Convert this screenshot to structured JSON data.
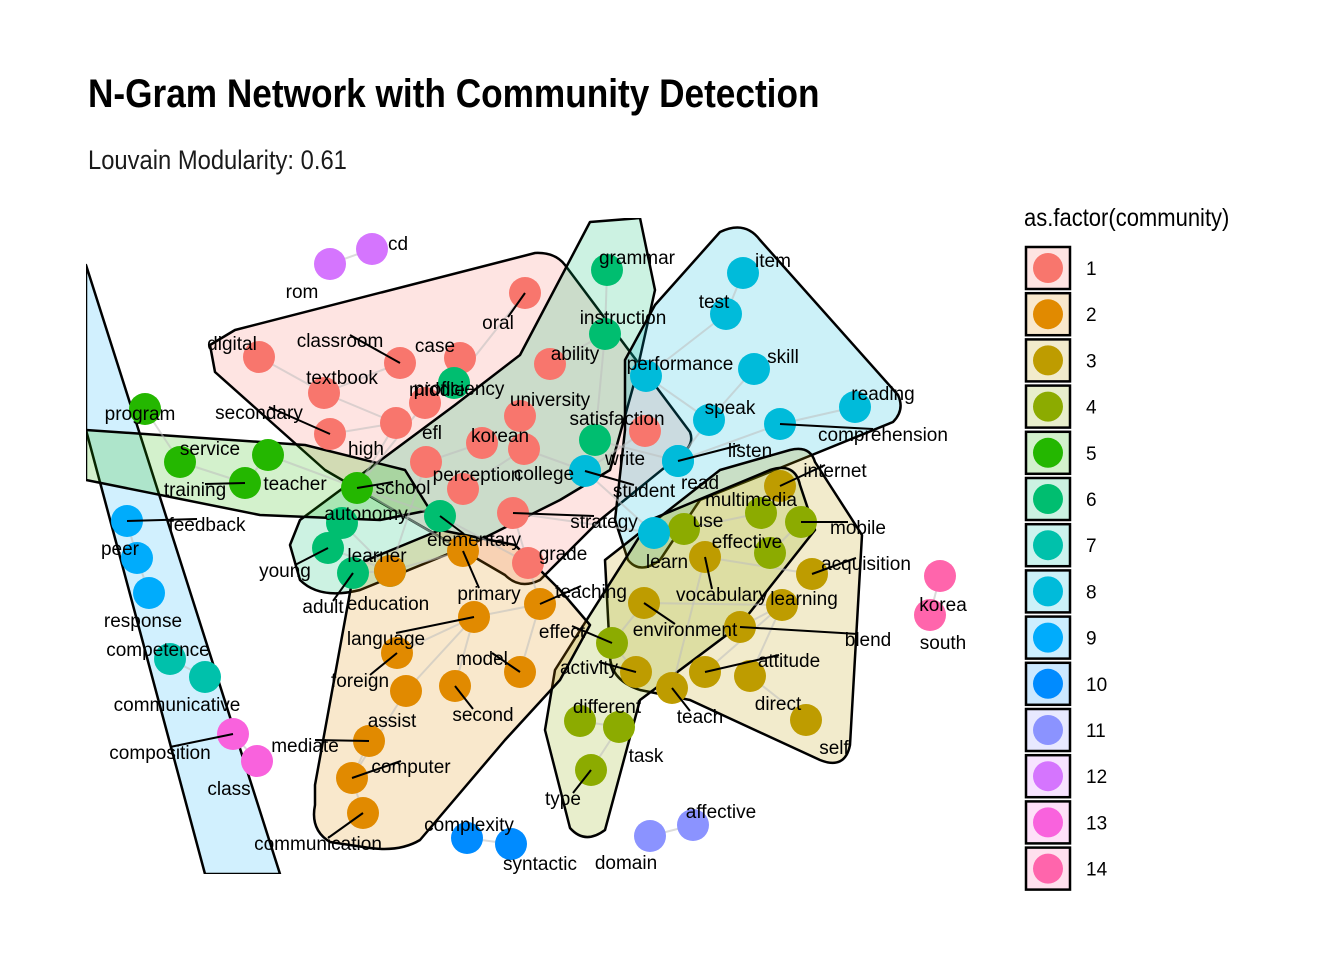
{
  "title": "N-Gram Network with Community Detection",
  "subtitle": "Louvain Modularity: 0.61",
  "legend": {
    "title": "as.factor(community)",
    "items": [
      {
        "label": "1",
        "color": "#F8766D"
      },
      {
        "label": "2",
        "color": "#E18A00"
      },
      {
        "label": "3",
        "color": "#BE9C00"
      },
      {
        "label": "4",
        "color": "#8CAB00"
      },
      {
        "label": "5",
        "color": "#24B700"
      },
      {
        "label": "6",
        "color": "#00BE70"
      },
      {
        "label": "7",
        "color": "#00C1AB"
      },
      {
        "label": "8",
        "color": "#00BBDA"
      },
      {
        "label": "9",
        "color": "#00ACFC"
      },
      {
        "label": "10",
        "color": "#008BFF"
      },
      {
        "label": "11",
        "color": "#8B93FF"
      },
      {
        "label": "12",
        "color": "#D575FE"
      },
      {
        "label": "13",
        "color": "#F962DD"
      },
      {
        "label": "14",
        "color": "#FF65AC"
      }
    ]
  },
  "nodes": [
    {
      "word": "rom",
      "community": 12
    },
    {
      "word": "cd",
      "community": 12
    },
    {
      "word": "grammar",
      "community": 6
    },
    {
      "word": "item",
      "community": 8
    },
    {
      "word": "test",
      "community": 8
    },
    {
      "word": "oral",
      "community": 1
    },
    {
      "word": "instruction",
      "community": 6
    },
    {
      "word": "digital",
      "community": 1
    },
    {
      "word": "classroom",
      "community": 1
    },
    {
      "word": "case",
      "community": 1
    },
    {
      "word": "ability",
      "community": 1
    },
    {
      "word": "performance",
      "community": 8
    },
    {
      "word": "skill",
      "community": 8
    },
    {
      "word": "textbook",
      "community": 1
    },
    {
      "word": "middle",
      "community": 1
    },
    {
      "word": "proficiency",
      "community": 6
    },
    {
      "word": "reading",
      "community": 8
    },
    {
      "word": "university",
      "community": 1
    },
    {
      "word": "speak",
      "community": 8
    },
    {
      "word": "program",
      "community": 5
    },
    {
      "word": "secondary",
      "community": 1
    },
    {
      "word": "satisfaction",
      "community": 1
    },
    {
      "word": "comprehension",
      "community": 8
    },
    {
      "word": "service",
      "community": 5
    },
    {
      "word": "high",
      "community": 1
    },
    {
      "word": "efl",
      "community": 1
    },
    {
      "word": "korean",
      "community": 1
    },
    {
      "word": "listen",
      "community": 8
    },
    {
      "word": "write",
      "community": 6
    },
    {
      "word": "internet",
      "community": 3
    },
    {
      "word": "perception",
      "community": 1
    },
    {
      "word": "college",
      "community": 1
    },
    {
      "word": "teacher",
      "community": 5
    },
    {
      "word": "training",
      "community": 5
    },
    {
      "word": "school",
      "community": 5
    },
    {
      "word": "student",
      "community": 8
    },
    {
      "word": "read",
      "community": 8
    },
    {
      "word": "multimedia",
      "community": 4
    },
    {
      "word": "autonomy",
      "community": 6
    },
    {
      "word": "mobile",
      "community": 4
    },
    {
      "word": "feedback",
      "community": 9
    },
    {
      "word": "strategy",
      "community": 1
    },
    {
      "word": "use",
      "community": 4
    },
    {
      "word": "effective",
      "community": 4
    },
    {
      "word": "elementary",
      "community": 6
    },
    {
      "word": "peer",
      "community": 9
    },
    {
      "word": "learner",
      "community": 6
    },
    {
      "word": "grade",
      "community": 1
    },
    {
      "word": "acquisition",
      "community": 3
    },
    {
      "word": "learn",
      "community": 8
    },
    {
      "word": "young",
      "community": 6
    },
    {
      "word": "korea",
      "community": 14
    },
    {
      "word": "primary",
      "community": 2
    },
    {
      "word": "teaching",
      "community": 2
    },
    {
      "word": "vocabulary",
      "community": 3
    },
    {
      "word": "adult",
      "community": 6
    },
    {
      "word": "education",
      "community": 2
    },
    {
      "word": "learning",
      "community": 3
    },
    {
      "word": "response",
      "community": 9
    },
    {
      "word": "south",
      "community": 14
    },
    {
      "word": "language",
      "community": 2
    },
    {
      "word": "effect",
      "community": 4
    },
    {
      "word": "environment",
      "community": 3
    },
    {
      "word": "blend",
      "community": 3
    },
    {
      "word": "competence",
      "community": 7
    },
    {
      "word": "model",
      "community": 2
    },
    {
      "word": "attitude",
      "community": 3
    },
    {
      "word": "foreign",
      "community": 2
    },
    {
      "word": "activity",
      "community": 3
    },
    {
      "word": "communicative",
      "community": 7
    },
    {
      "word": "direct",
      "community": 3
    },
    {
      "word": "different",
      "community": 4
    },
    {
      "word": "assist",
      "community": 2
    },
    {
      "word": "second",
      "community": 2
    },
    {
      "word": "teach",
      "community": 3
    },
    {
      "word": "self",
      "community": 3
    },
    {
      "word": "task",
      "community": 4
    },
    {
      "word": "composition",
      "community": 13
    },
    {
      "word": "mediate",
      "community": 2
    },
    {
      "word": "class",
      "community": 13
    },
    {
      "word": "computer",
      "community": 2
    },
    {
      "word": "type",
      "community": 4
    },
    {
      "word": "affective",
      "community": 11
    },
    {
      "word": "complexity",
      "community": 10
    },
    {
      "word": "communication",
      "community": 2
    },
    {
      "word": "syntactic",
      "community": 10
    },
    {
      "word": "domain",
      "community": 11
    }
  ]
}
